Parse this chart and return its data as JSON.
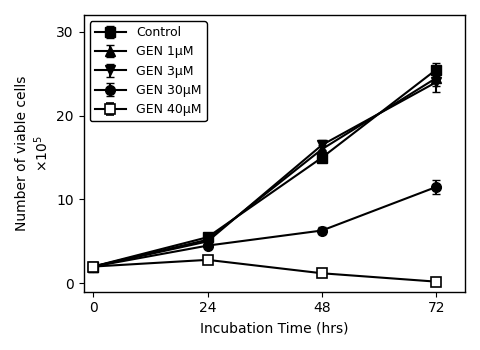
{
  "title": "",
  "xlabel": "Incubation Time (hrs)",
  "ylabel": "Number of viable cells\nx10⁵",
  "xlim": [
    -2,
    78
  ],
  "ylim": [
    -1,
    32
  ],
  "xticks": [
    0,
    24,
    48,
    72
  ],
  "yticks": [
    0,
    10,
    20,
    30
  ],
  "time_points": [
    0,
    24,
    48,
    72
  ],
  "series": [
    {
      "label": "Control",
      "values": [
        2.0,
        5.5,
        15.0,
        25.5
      ],
      "errors": [
        0.0,
        0.3,
        0.5,
        0.8
      ],
      "marker": "s",
      "fillstyle": "full",
      "color": "#000000",
      "linestyle": "-",
      "linewidth": 1.5,
      "markersize": 7
    },
    {
      "label": "GEN 1μM",
      "values": [
        2.0,
        5.2,
        16.0,
        24.5
      ],
      "errors": [
        0.0,
        0.3,
        0.5,
        1.0
      ],
      "marker": "^",
      "fillstyle": "full",
      "color": "#000000",
      "linestyle": "-",
      "linewidth": 1.5,
      "markersize": 7
    },
    {
      "label": "GEN 3μM",
      "values": [
        2.0,
        5.0,
        16.5,
        24.0
      ],
      "errors": [
        0.0,
        0.3,
        0.6,
        1.2
      ],
      "marker": "v",
      "fillstyle": "full",
      "color": "#000000",
      "linestyle": "-",
      "linewidth": 1.5,
      "markersize": 7
    },
    {
      "label": "GEN 30μM",
      "values": [
        2.0,
        4.5,
        6.3,
        11.5
      ],
      "errors": [
        0.0,
        0.2,
        0.4,
        0.8
      ],
      "marker": "o",
      "fillstyle": "full",
      "color": "#000000",
      "linestyle": "-",
      "linewidth": 1.5,
      "markersize": 7
    },
    {
      "label": "GEN 40μM",
      "values": [
        2.0,
        2.8,
        1.2,
        0.2
      ],
      "errors": [
        0.0,
        0.2,
        0.3,
        0.1
      ],
      "marker": "s",
      "fillstyle": "none",
      "color": "#000000",
      "linestyle": "-",
      "linewidth": 1.5,
      "markersize": 7
    }
  ],
  "figure_bg": "#ffffff",
  "axes_bg": "#ffffff",
  "box_color": "#000000",
  "grid": false,
  "legend_loc": "upper left",
  "legend_fontsize": 9,
  "axis_fontsize": 10,
  "tick_fontsize": 10,
  "figsize": [
    4.8,
    3.5
  ]
}
